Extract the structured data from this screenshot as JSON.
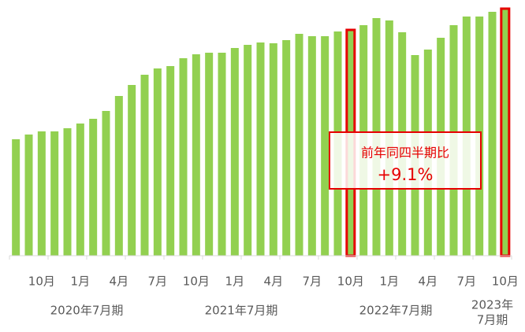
{
  "chart_data": {
    "type": "bar",
    "color": "#92d050",
    "highlight_color": "#e60000",
    "highlighted": [
      26,
      38
    ],
    "ylim": [
      0,
      320
    ],
    "categories": [
      null,
      null,
      "10月",
      null,
      null,
      "1月",
      null,
      null,
      "4月",
      null,
      null,
      "7月",
      null,
      null,
      "10月",
      null,
      null,
      "1月",
      null,
      null,
      "4月",
      null,
      null,
      "7月",
      null,
      null,
      "10月",
      null,
      null,
      "1月",
      null,
      null,
      "4月",
      null,
      null,
      "7月",
      null,
      null,
      "10月"
    ],
    "values": [
      148,
      154,
      158,
      158,
      162,
      168,
      174,
      184,
      203,
      217,
      230,
      238,
      241,
      251,
      256,
      258,
      258,
      264,
      268,
      271,
      270,
      274,
      282,
      279,
      279,
      285,
      287,
      293,
      302,
      299,
      284,
      255,
      262,
      277,
      293,
      304,
      304,
      310,
      314
    ],
    "periods": [
      {
        "lines": [
          "2020年7月期"
        ],
        "start": 0,
        "end": 11
      },
      {
        "lines": [
          "2021年7月期"
        ],
        "start": 12,
        "end": 23
      },
      {
        "lines": [
          "2022年7月期"
        ],
        "start": 24,
        "end": 35
      },
      {
        "lines": [
          "2023年",
          "7月期"
        ],
        "start": 36,
        "end": 38
      }
    ],
    "annotation": {
      "title": "前年同四半期比",
      "value": "+9.1%"
    }
  }
}
